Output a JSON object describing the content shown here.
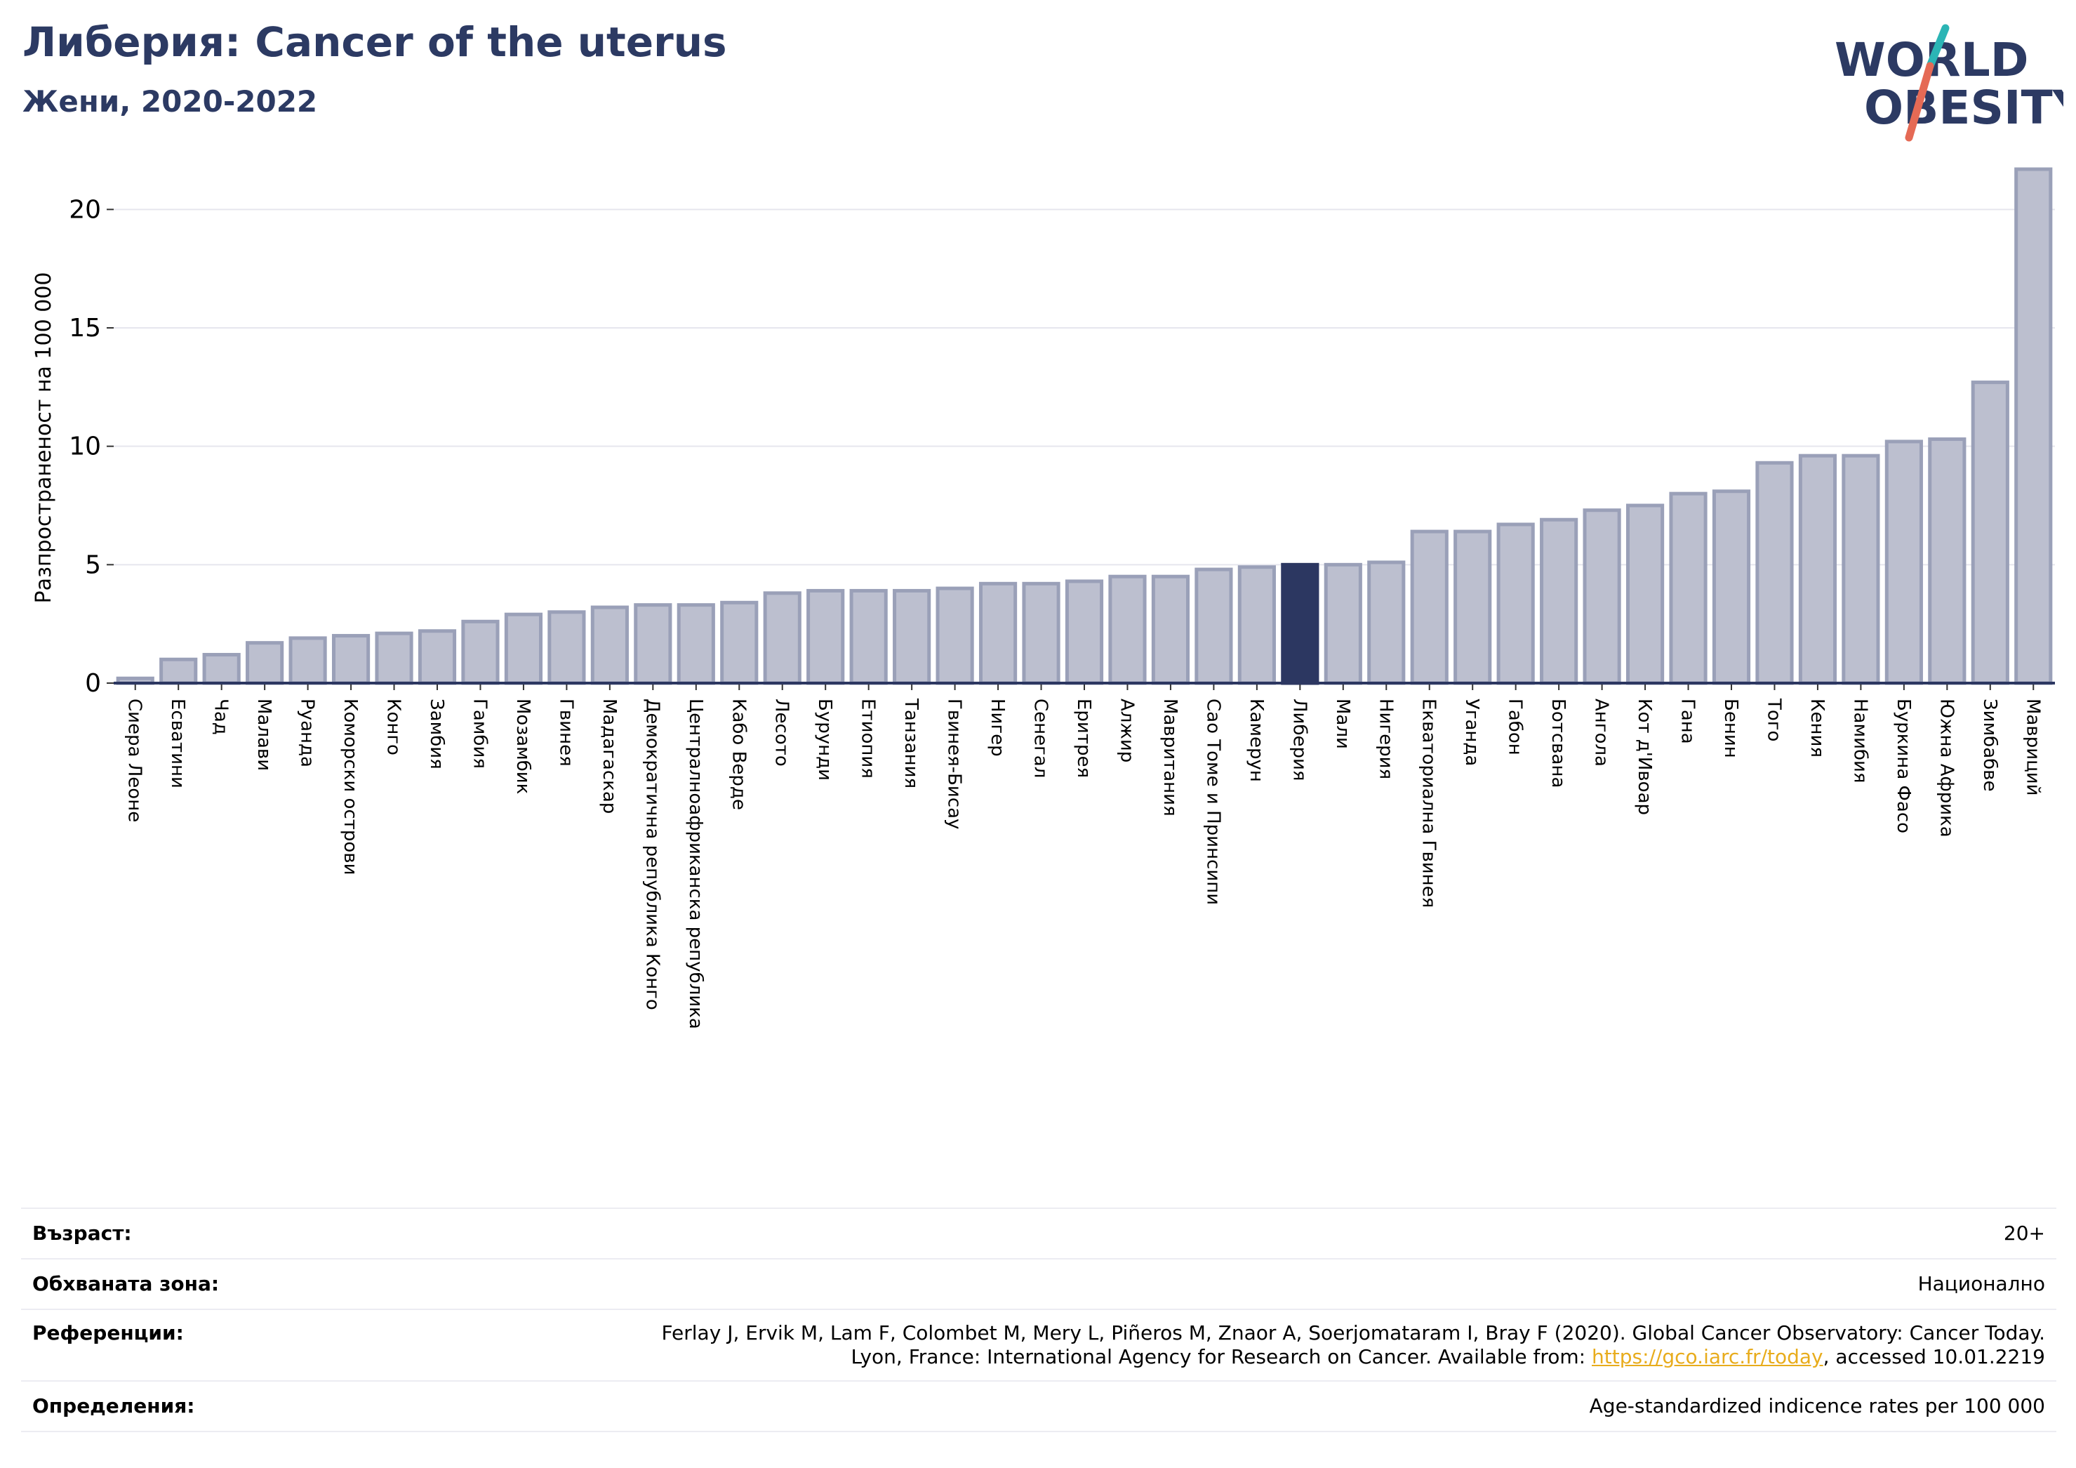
{
  "header": {
    "title": "Либерия: Cancer of the uterus",
    "subtitle": "Жени, 2020-2022"
  },
  "logo": {
    "line1": "WORLD",
    "line2": "OBESITY",
    "colors": {
      "text": "#2c3a63",
      "slash_top": "#2bb5b5",
      "slash_bottom": "#e56a55"
    }
  },
  "chart_data": {
    "type": "bar",
    "ylabel": "Разпространеност  на 100 000",
    "ylim": [
      0,
      22.5
    ],
    "yticks": [
      0,
      5,
      10,
      15,
      20
    ],
    "grid": true,
    "highlight": "Либерия",
    "colors": {
      "bar": "#bcbfcf",
      "bar_edge": "#9aa0b8",
      "highlight": "#2c3761",
      "axis": "#2c3761",
      "grid": "#e6e6ee"
    },
    "categories": [
      "Сиера Леоне",
      "Есватини",
      "Чад",
      "Малави",
      "Руанда",
      "Коморски острови",
      "Конго",
      "Замбия",
      "Гамбия",
      "Мозамбик",
      "Гвинея",
      "Мадагаскар",
      "Демократична република Конго",
      "Централноафриканска република",
      "Кабо Верде",
      "Лесото",
      "Бурунди",
      "Етиопия",
      "Танзания",
      "Гвинея-Бисау",
      "Нигер",
      "Сенегал",
      "Еритрея",
      "Алжир",
      "Мавритания",
      "Сао Томе и Принсипи",
      "Камерун",
      "Либерия",
      "Мали",
      "Нигерия",
      "Екваториална Гвинея",
      "Уганда",
      "Габон",
      "Ботсвана",
      "Ангола",
      "Кот д'Ивоар",
      "Гана",
      "Бенин",
      "Того",
      "Кения",
      "Намибия",
      "Буркина Фасо",
      "Южна Африка",
      "Зимбабве",
      "Мавриций"
    ],
    "values": [
      0.2,
      1.0,
      1.2,
      1.7,
      1.9,
      2.0,
      2.1,
      2.2,
      2.6,
      2.9,
      3.0,
      3.2,
      3.3,
      3.3,
      3.4,
      3.8,
      3.9,
      3.9,
      3.9,
      4.0,
      4.2,
      4.2,
      4.3,
      4.5,
      4.5,
      4.8,
      4.9,
      5.0,
      5.0,
      5.1,
      6.4,
      6.4,
      6.7,
      6.9,
      7.3,
      7.5,
      8.0,
      8.1,
      9.3,
      9.6,
      9.6,
      10.2,
      10.3,
      12.7,
      21.7
    ]
  },
  "info": {
    "age_label": "Възраст:",
    "age_value": "20+",
    "area_label": "Обхваната зона:",
    "area_value": "Национално",
    "ref_label": "Референции:",
    "ref_line1": "Ferlay J, Ervik M, Lam F, Colombet M, Mery L, Piñeros M, Znaor A, Soerjomataram I, Bray F (2020). Global Cancer Observatory: Cancer Today.",
    "ref_line2_prefix": "Lyon, France: International Agency for Research on Cancer. Available from: ",
    "ref_link": "https://gco.iarc.fr/today",
    "ref_line2_suffix": ", accessed 10.01.2219",
    "def_label": "Определения:",
    "def_value": "Age-standardized indicence rates per 100 000"
  }
}
